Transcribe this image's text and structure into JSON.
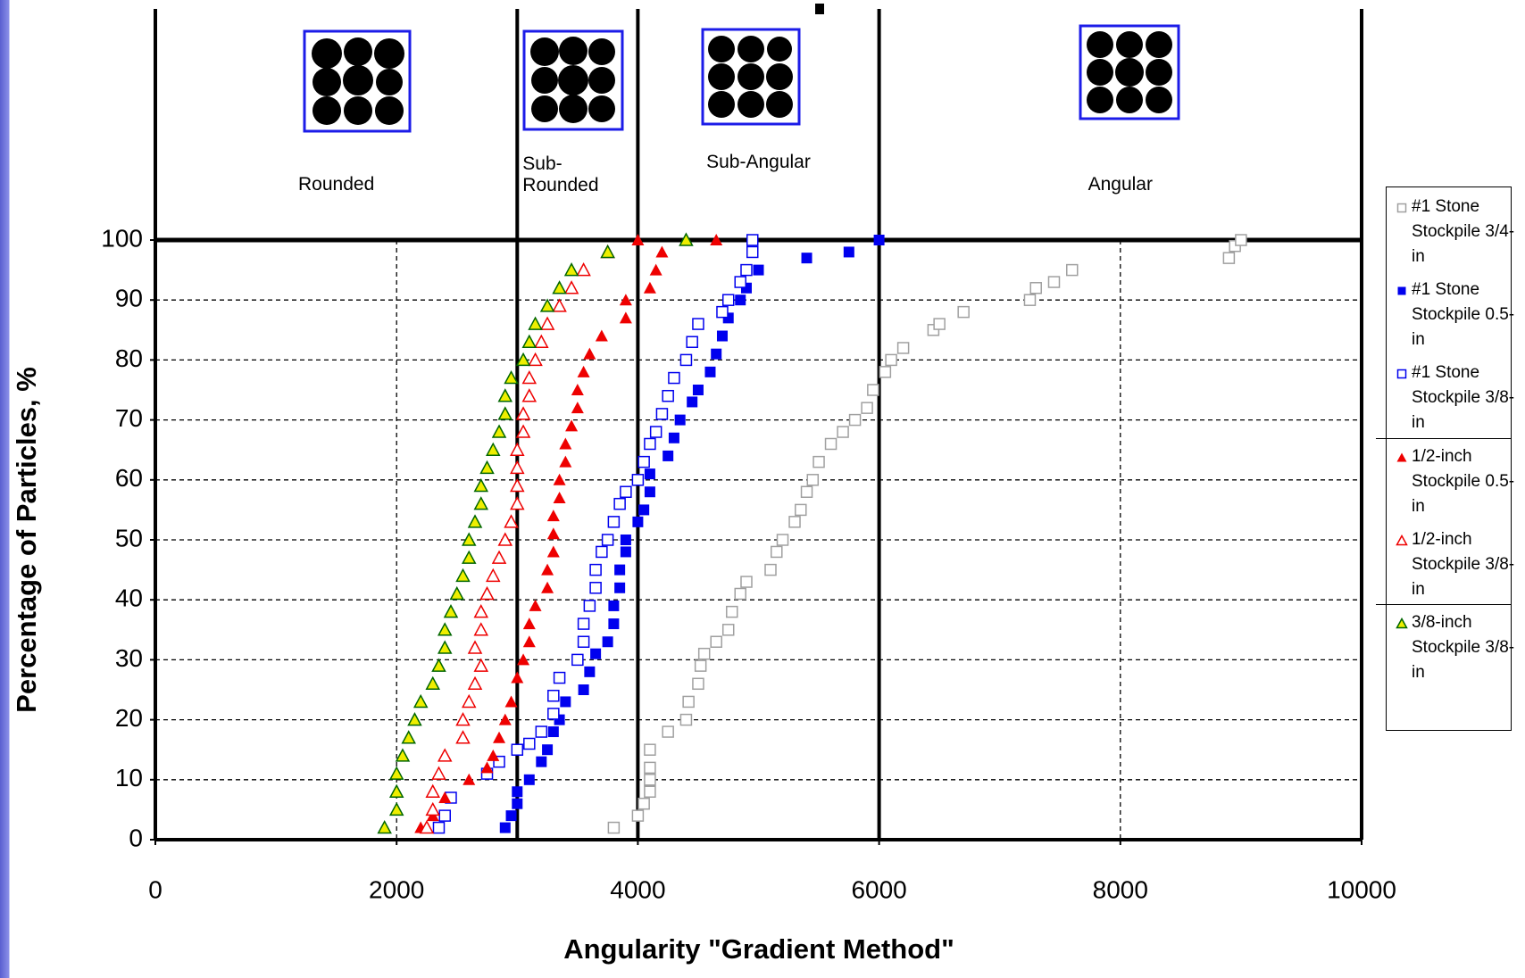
{
  "chart_data": {
    "type": "scatter",
    "xlabel": "Angularity \"Gradient Method\"",
    "ylabel": "Percentage of Particles, %",
    "xlim": [
      0,
      10000
    ],
    "ylim": [
      0,
      100
    ],
    "xticks": [
      0,
      2000,
      4000,
      6000,
      8000,
      10000
    ],
    "yticks": [
      0,
      10,
      20,
      30,
      40,
      50,
      60,
      70,
      80,
      90,
      100
    ],
    "grid": true,
    "zone_bounds": [
      3000,
      4000,
      6000
    ],
    "zones": [
      "Rounded",
      "Sub-Rounded",
      "Sub-Angular",
      "Angular"
    ],
    "series": [
      {
        "name": "#1 Stone Stockpile 3/4-in",
        "color": "#a0a0a0",
        "marker": "square",
        "filled": false,
        "x": [
          3800,
          4000,
          4050,
          4100,
          4100,
          4100,
          4100,
          4250,
          4400,
          4420,
          4500,
          4520,
          4550,
          4650,
          4750,
          4780,
          4850,
          4900,
          5100,
          5150,
          5200,
          5300,
          5350,
          5400,
          5450,
          5500,
          5600,
          5700,
          5800,
          5900,
          5950,
          6050,
          6100,
          6200,
          6450,
          6500,
          6700,
          7250,
          7300,
          7450,
          7600,
          8900,
          8950,
          9000
        ],
        "values": [
          2,
          4,
          6,
          8,
          10,
          12,
          15,
          18,
          20,
          23,
          26,
          29,
          31,
          33,
          35,
          38,
          41,
          43,
          45,
          48,
          50,
          53,
          55,
          58,
          60,
          63,
          66,
          68,
          70,
          72,
          75,
          78,
          80,
          82,
          85,
          86,
          88,
          90,
          92,
          93,
          95,
          97,
          99,
          100
        ]
      },
      {
        "name": "#1 Stone Stockpile 0.5-in",
        "color": "#0000ee",
        "marker": "square",
        "filled": true,
        "x": [
          2900,
          2950,
          3000,
          3000,
          3100,
          3200,
          3250,
          3300,
          3350,
          3400,
          3550,
          3600,
          3650,
          3750,
          3800,
          3800,
          3850,
          3850,
          3900,
          3900,
          4000,
          4050,
          4100,
          4100,
          4250,
          4300,
          4350,
          4450,
          4500,
          4600,
          4650,
          4700,
          4750,
          4850,
          4900,
          5000,
          5400,
          5750,
          6000
        ],
        "values": [
          2,
          4,
          6,
          8,
          10,
          13,
          15,
          18,
          20,
          23,
          25,
          28,
          31,
          33,
          36,
          39,
          42,
          45,
          48,
          50,
          53,
          55,
          58,
          61,
          64,
          67,
          70,
          73,
          75,
          78,
          81,
          84,
          87,
          90,
          92,
          95,
          97,
          98,
          100
        ]
      },
      {
        "name": "#1 Stone Stockpile 3/8-in",
        "color": "#0000ee",
        "marker": "square",
        "filled": false,
        "x": [
          2350,
          2400,
          2450,
          2750,
          2850,
          3000,
          3100,
          3200,
          3300,
          3300,
          3350,
          3500,
          3550,
          3550,
          3600,
          3650,
          3650,
          3700,
          3750,
          3800,
          3850,
          3900,
          4000,
          4050,
          4100,
          4150,
          4200,
          4250,
          4300,
          4400,
          4450,
          4500,
          4700,
          4750,
          4850,
          4900,
          4950,
          4950
        ],
        "values": [
          2,
          4,
          7,
          11,
          13,
          15,
          16,
          18,
          21,
          24,
          27,
          30,
          33,
          36,
          39,
          42,
          45,
          48,
          50,
          53,
          56,
          58,
          60,
          63,
          66,
          68,
          71,
          74,
          77,
          80,
          83,
          86,
          88,
          90,
          93,
          95,
          98,
          100
        ]
      },
      {
        "name": "1/2-inch Stockpile 0.5-in",
        "color": "#ee0000",
        "marker": "triangle",
        "filled": true,
        "x": [
          2200,
          2300,
          2400,
          2600,
          2750,
          2800,
          2850,
          2900,
          2950,
          3000,
          3050,
          3100,
          3100,
          3150,
          3250,
          3250,
          3300,
          3300,
          3300,
          3350,
          3350,
          3400,
          3400,
          3450,
          3500,
          3500,
          3550,
          3600,
          3700,
          3900,
          3900,
          4100,
          4150,
          4200,
          4000,
          4650
        ],
        "values": [
          2,
          4,
          7,
          10,
          12,
          14,
          17,
          20,
          23,
          27,
          30,
          33,
          36,
          39,
          42,
          45,
          48,
          51,
          54,
          57,
          60,
          63,
          66,
          69,
          72,
          75,
          78,
          81,
          84,
          87,
          90,
          92,
          95,
          98,
          100,
          100
        ]
      },
      {
        "name": "1/2-inch Stockpile 3/8-in",
        "color": "#ee0000",
        "marker": "triangle",
        "filled": false,
        "x": [
          2250,
          2300,
          2300,
          2350,
          2400,
          2550,
          2550,
          2600,
          2650,
          2700,
          2650,
          2700,
          2700,
          2750,
          2800,
          2850,
          2900,
          2950,
          3000,
          3000,
          3000,
          3000,
          3050,
          3050,
          3100,
          3100,
          3150,
          3200,
          3250,
          3350,
          3450,
          3550,
          3750
        ],
        "values": [
          2,
          5,
          8,
          11,
          14,
          17,
          20,
          23,
          26,
          29,
          32,
          35,
          38,
          41,
          44,
          47,
          50,
          53,
          56,
          59,
          62,
          65,
          68,
          71,
          74,
          77,
          80,
          83,
          86,
          89,
          92,
          95,
          98
        ]
      },
      {
        "name": "3/8-inch Stockpile 3/8-in",
        "color": "#eeee00",
        "stroke": "#006600",
        "marker": "triangle",
        "filled": true,
        "x": [
          1900,
          2000,
          2000,
          2000,
          2050,
          2100,
          2150,
          2200,
          2300,
          2350,
          2400,
          2400,
          2450,
          2500,
          2550,
          2600,
          2600,
          2650,
          2700,
          2700,
          2750,
          2800,
          2850,
          2900,
          2900,
          2950,
          3050,
          3100,
          3150,
          3250,
          3350,
          3450,
          3750,
          4400
        ],
        "values": [
          2,
          5,
          8,
          11,
          14,
          17,
          20,
          23,
          26,
          29,
          32,
          35,
          38,
          41,
          44,
          47,
          50,
          53,
          56,
          59,
          62,
          65,
          68,
          71,
          74,
          77,
          80,
          83,
          86,
          89,
          92,
          95,
          98,
          100
        ]
      }
    ]
  }
}
